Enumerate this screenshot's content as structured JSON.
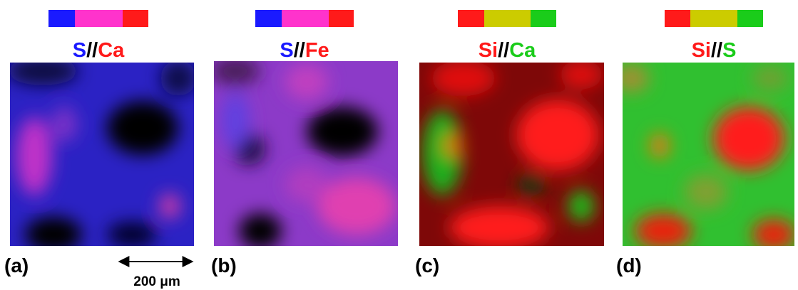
{
  "panels": [
    {
      "label": "(a)",
      "title": [
        "S",
        "//",
        "Ca"
      ]
    },
    {
      "label": "(b)",
      "title": [
        "S",
        "//",
        "Fe"
      ]
    },
    {
      "label": "(c)",
      "title": [
        "Si",
        "//",
        "Ca"
      ]
    },
    {
      "label": "(d)",
      "title": [
        "Si",
        "//",
        "S"
      ]
    }
  ],
  "scale_bar": "200 μm"
}
